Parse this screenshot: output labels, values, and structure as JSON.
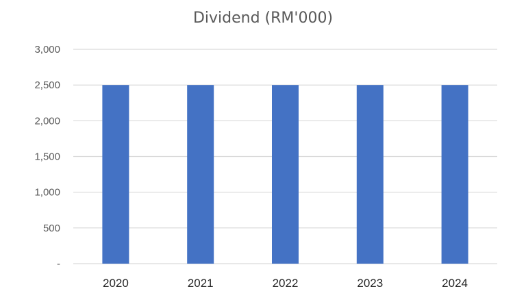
{
  "chart_data": {
    "type": "bar",
    "title": "Dividend (RM'000)",
    "xlabel": "",
    "ylabel": "",
    "categories": [
      "2020",
      "2021",
      "2022",
      "2023",
      "2024"
    ],
    "values": [
      2500,
      2500,
      2500,
      2500,
      2500
    ],
    "ylim": [
      0,
      3000
    ],
    "yticks": [
      0,
      500,
      1000,
      1500,
      2000,
      2500,
      3000
    ],
    "ytick_labels": [
      "-",
      "500",
      "1,000",
      "1,500",
      "2,000",
      "2,500",
      "3,000"
    ],
    "grid": true,
    "legend": "none",
    "bar_color": "#4472C4",
    "grid_color": "#D9D9D9"
  }
}
